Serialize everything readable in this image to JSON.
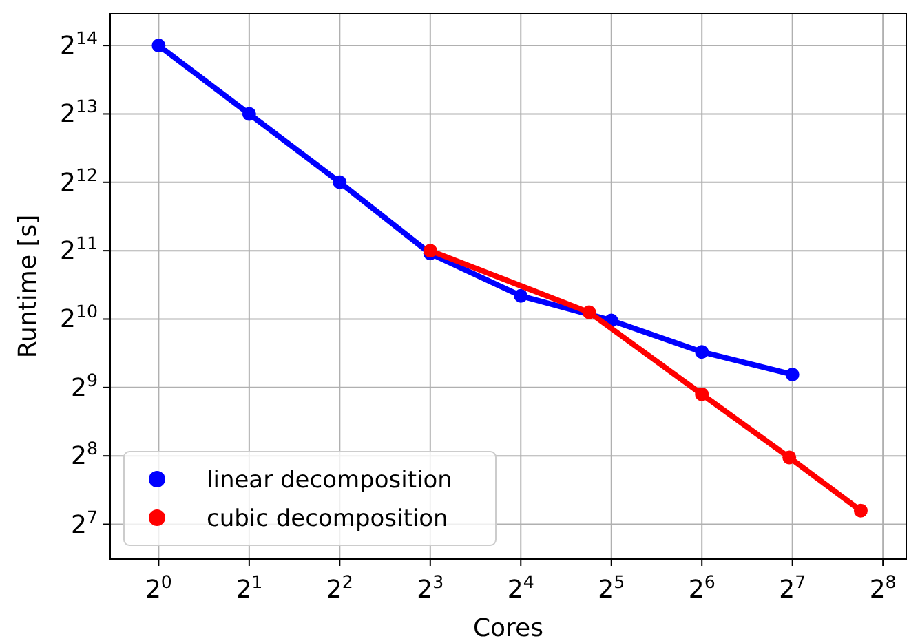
{
  "chart_data": {
    "type": "line",
    "xlabel": "Cores",
    "ylabel": "Runtime [s]",
    "log": "xy",
    "grid": true,
    "legend": "bottom left",
    "marker": "circle",
    "line_style": "solid",
    "xlim": [
      0.69,
      306
    ],
    "ylim": [
      90,
      22600
    ],
    "xticks": [
      {
        "value": 1,
        "label": "2$^{0}$"
      },
      {
        "value": 2,
        "label": "2$^{1}$"
      },
      {
        "value": 4,
        "label": "2$^{2}$"
      },
      {
        "value": 8,
        "label": "2$^{3}$"
      },
      {
        "value": 16,
        "label": "2$^{4}$"
      },
      {
        "value": 32,
        "label": "2$^{5}$"
      },
      {
        "value": 64,
        "label": "2$^{6}$"
      },
      {
        "value": 128,
        "label": "2$^{7}$"
      },
      {
        "value": 256,
        "label": "2$^{8}$"
      }
    ],
    "yticks": [
      {
        "value": 128,
        "label": "2$^{7}$"
      },
      {
        "value": 256,
        "label": "2$^{8}$"
      },
      {
        "value": 512,
        "label": "2$^{9}$"
      },
      {
        "value": 1024,
        "label": "2$^{10}$"
      },
      {
        "value": 2048,
        "label": "2$^{11}$"
      },
      {
        "value": 4096,
        "label": "2$^{12}$"
      },
      {
        "value": 8192,
        "label": "2$^{13}$"
      },
      {
        "value": 16384,
        "label": "2$^{14}$"
      }
    ],
    "series": [
      {
        "name": "linear decomposition",
        "color": "#0000ff",
        "x": [
          1,
          2,
          4,
          8,
          16,
          32,
          64,
          128
        ],
        "values": [
          16384,
          8192,
          4096,
          1990,
          1296,
          1010,
          734,
          584
        ]
      },
      {
        "name": "cubic decomposition",
        "color": "#ff0000",
        "x": [
          8,
          27,
          64,
          125,
          216
        ],
        "values": [
          2048,
          1097,
          478,
          252,
          147
        ]
      }
    ]
  }
}
